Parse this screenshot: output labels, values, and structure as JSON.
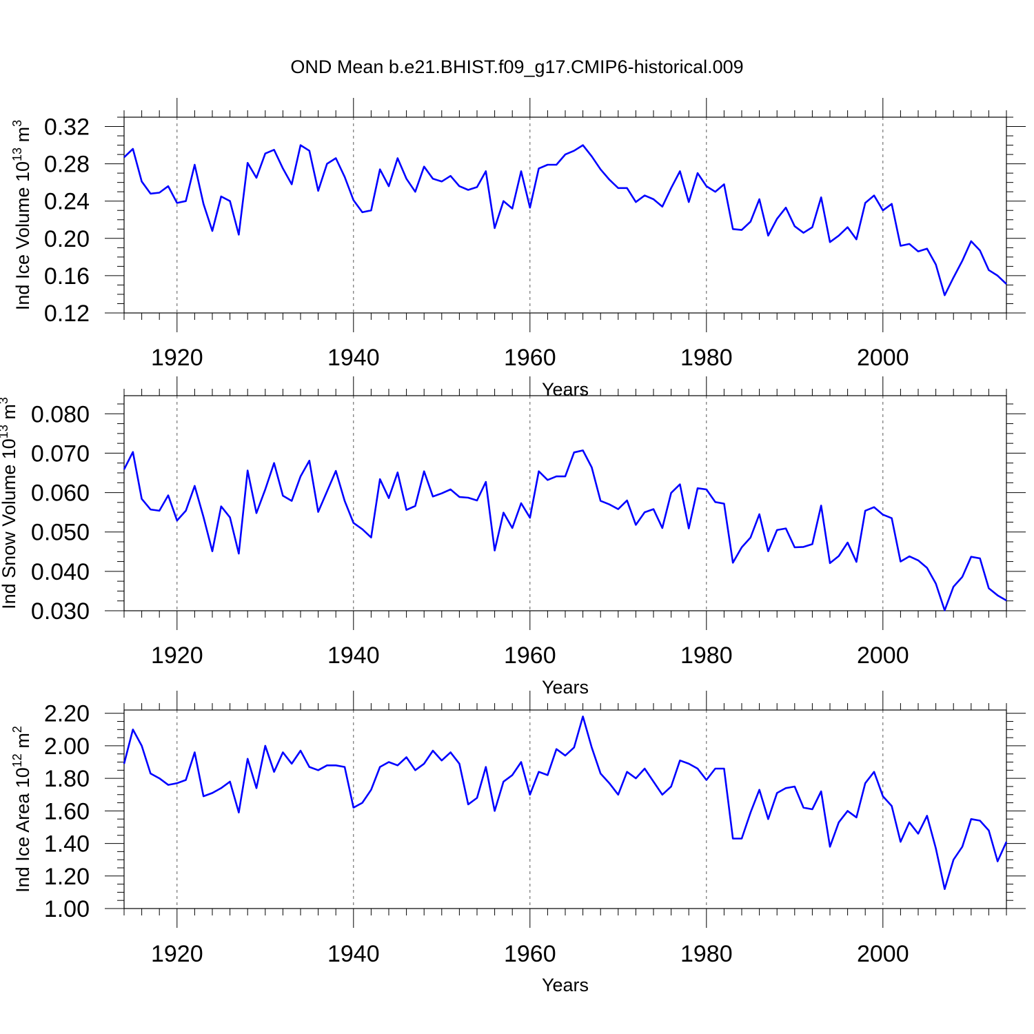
{
  "title": "OND Mean b.e21.BHIST.f09_g17.CMIP6-historical.009",
  "colors": {
    "line": "#0000ff",
    "axis": "#000000",
    "grid": "#555555"
  },
  "chart_data": [
    {
      "type": "line",
      "ylabel": {
        "text": "Ind Ice Volume 10",
        "exp": "13",
        "unit": " m",
        "unit_exp": "3"
      },
      "xlabel": "Years",
      "xlim": [
        1914,
        2014
      ],
      "ylim": [
        0.12,
        0.33
      ],
      "yticks": [
        "0.12",
        "0.16",
        "0.20",
        "0.24",
        "0.28",
        "0.32"
      ],
      "xticks": [
        "1920",
        "1940",
        "1960",
        "1980",
        "2000"
      ],
      "x_start": 1914,
      "series": [
        {
          "values": [
            0.287,
            0.296,
            0.261,
            0.248,
            0.249,
            0.256,
            0.238,
            0.24,
            0.279,
            0.237,
            0.208,
            0.245,
            0.24,
            0.204,
            0.281,
            0.265,
            0.291,
            0.295,
            0.275,
            0.258,
            0.3,
            0.294,
            0.251,
            0.28,
            0.286,
            0.266,
            0.241,
            0.228,
            0.23,
            0.274,
            0.256,
            0.286,
            0.264,
            0.25,
            0.277,
            0.264,
            0.261,
            0.267,
            0.256,
            0.252,
            0.255,
            0.272,
            0.211,
            0.24,
            0.232,
            0.272,
            0.233,
            0.275,
            0.279,
            0.279,
            0.29,
            0.294,
            0.3,
            0.288,
            0.274,
            0.263,
            0.254,
            0.254,
            0.239,
            0.246,
            0.242,
            0.234,
            0.254,
            0.272,
            0.239,
            0.27,
            0.256,
            0.25,
            0.258,
            0.21,
            0.209,
            0.218,
            0.242,
            0.203,
            0.221,
            0.233,
            0.213,
            0.206,
            0.212,
            0.244,
            0.196,
            0.203,
            0.212,
            0.199,
            0.238,
            0.246,
            0.23,
            0.237,
            0.192,
            0.194,
            0.186,
            0.189,
            0.172,
            0.139,
            0.158,
            0.176,
            0.197,
            0.187,
            0.166,
            0.16,
            0.151
          ]
        }
      ]
    },
    {
      "type": "line",
      "ylabel": {
        "text": "Ind Snow Volume 10",
        "exp": "13",
        "unit": " m",
        "unit_exp": "3"
      },
      "xlabel": "Years",
      "xlim": [
        1914,
        2014
      ],
      "ylim": [
        0.03,
        0.0846
      ],
      "yticks": [
        "0.030",
        "0.040",
        "0.050",
        "0.060",
        "0.070",
        "0.080"
      ],
      "xticks": [
        "1920",
        "1940",
        "1960",
        "1980",
        "2000"
      ],
      "x_start": 1914,
      "series": [
        {
          "values": [
            0.0659,
            0.0703,
            0.0584,
            0.0557,
            0.0554,
            0.0593,
            0.0529,
            0.0554,
            0.0617,
            0.0538,
            0.0451,
            0.0565,
            0.0537,
            0.0445,
            0.0656,
            0.0548,
            0.0608,
            0.0675,
            0.0592,
            0.0579,
            0.0641,
            0.0681,
            0.0551,
            0.0603,
            0.0655,
            0.0579,
            0.0523,
            0.0507,
            0.0486,
            0.0634,
            0.0586,
            0.0651,
            0.0556,
            0.0566,
            0.0654,
            0.059,
            0.0598,
            0.0608,
            0.0589,
            0.0587,
            0.058,
            0.0627,
            0.0453,
            0.0549,
            0.051,
            0.0573,
            0.0536,
            0.0654,
            0.0632,
            0.0641,
            0.0641,
            0.0702,
            0.0707,
            0.0664,
            0.0579,
            0.057,
            0.0558,
            0.058,
            0.0518,
            0.055,
            0.0558,
            0.051,
            0.0599,
            0.0621,
            0.0509,
            0.0611,
            0.0608,
            0.0576,
            0.0572,
            0.0422,
            0.0461,
            0.0486,
            0.0545,
            0.0451,
            0.0505,
            0.0509,
            0.0461,
            0.0462,
            0.0469,
            0.0567,
            0.0421,
            0.0439,
            0.0473,
            0.0424,
            0.0554,
            0.0563,
            0.0544,
            0.0535,
            0.0425,
            0.0438,
            0.0428,
            0.0409,
            0.0369,
            0.0301,
            0.0361,
            0.0386,
            0.0437,
            0.0433,
            0.0357,
            0.0339,
            0.0326
          ]
        }
      ]
    },
    {
      "type": "line",
      "ylabel": {
        "text": "Ind Ice Area 10",
        "exp": "12",
        "unit": " m",
        "unit_exp": "2"
      },
      "xlabel": "Years",
      "xlim": [
        1914,
        2014
      ],
      "ylim": [
        1.0,
        2.22
      ],
      "yticks": [
        "1.00",
        "1.20",
        "1.40",
        "1.60",
        "1.80",
        "2.00",
        "2.20"
      ],
      "xticks": [
        "1920",
        "1940",
        "1960",
        "1980",
        "2000"
      ],
      "x_start": 1914,
      "series": [
        {
          "values": [
            1.89,
            2.1,
            2.0,
            1.83,
            1.8,
            1.76,
            1.77,
            1.79,
            1.96,
            1.69,
            1.71,
            1.74,
            1.78,
            1.59,
            1.92,
            1.74,
            2.0,
            1.84,
            1.96,
            1.89,
            1.97,
            1.87,
            1.85,
            1.88,
            1.88,
            1.87,
            1.62,
            1.65,
            1.73,
            1.87,
            1.9,
            1.88,
            1.93,
            1.85,
            1.89,
            1.97,
            1.91,
            1.96,
            1.89,
            1.64,
            1.68,
            1.87,
            1.6,
            1.78,
            1.82,
            1.9,
            1.7,
            1.84,
            1.82,
            1.98,
            1.94,
            1.99,
            2.18,
            1.99,
            1.83,
            1.77,
            1.7,
            1.84,
            1.8,
            1.86,
            1.78,
            1.7,
            1.75,
            1.91,
            1.89,
            1.86,
            1.79,
            1.86,
            1.86,
            1.43,
            1.43,
            1.59,
            1.73,
            1.55,
            1.71,
            1.74,
            1.75,
            1.62,
            1.61,
            1.72,
            1.38,
            1.53,
            1.6,
            1.56,
            1.77,
            1.84,
            1.69,
            1.63,
            1.41,
            1.53,
            1.46,
            1.57,
            1.37,
            1.12,
            1.3,
            1.38,
            1.55,
            1.54,
            1.48,
            1.29,
            1.41
          ]
        }
      ]
    }
  ]
}
